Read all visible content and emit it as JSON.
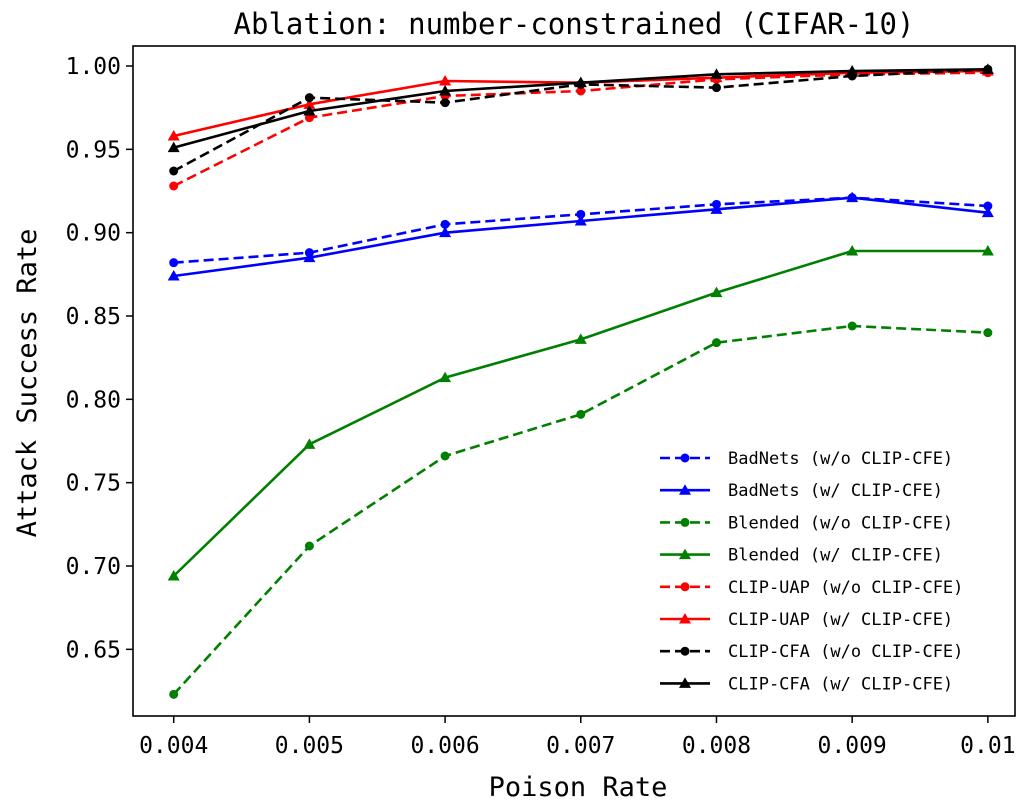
{
  "chart_data": {
    "type": "line",
    "title": "Ablation: number-constrained (CIFAR-10)",
    "xlabel": "Poison Rate",
    "ylabel": "Attack Success Rate",
    "x": [
      0.004,
      0.005,
      0.006,
      0.007,
      0.008,
      0.009,
      0.01
    ],
    "x_tick_labels": [
      "0.004",
      "0.005",
      "0.006",
      "0.007",
      "0.008",
      "0.009",
      "0.01"
    ],
    "y_ticks": [
      0.65,
      0.7,
      0.75,
      0.8,
      0.85,
      0.9,
      0.95,
      1.0
    ],
    "y_tick_labels": [
      "0.65",
      "0.70",
      "0.75",
      "0.80",
      "0.85",
      "0.90",
      "0.95",
      "1.00"
    ],
    "xlim": [
      0.0037,
      0.0102
    ],
    "ylim": [
      0.61,
      1.012
    ],
    "grid": false,
    "legend_position": "lower-right",
    "series": [
      {
        "name": "BadNets (w/o CLIP-CFE)",
        "color": "#0000ff",
        "dash": "dashed",
        "marker": "circle",
        "values": [
          0.882,
          0.888,
          0.905,
          0.911,
          0.917,
          0.921,
          0.916
        ]
      },
      {
        "name": "BadNets (w/ CLIP-CFE)",
        "color": "#0000ff",
        "dash": "solid",
        "marker": "triangle",
        "values": [
          0.874,
          0.885,
          0.9,
          0.907,
          0.914,
          0.921,
          0.912
        ]
      },
      {
        "name": "Blended (w/o CLIP-CFE)",
        "color": "#008000",
        "dash": "dashed",
        "marker": "circle",
        "values": [
          0.623,
          0.712,
          0.766,
          0.791,
          0.834,
          0.844,
          0.84
        ]
      },
      {
        "name": "Blended (w/ CLIP-CFE)",
        "color": "#008000",
        "dash": "solid",
        "marker": "triangle",
        "values": [
          0.694,
          0.773,
          0.813,
          0.836,
          0.864,
          0.889,
          0.889
        ]
      },
      {
        "name": "CLIP-UAP (w/o CLIP-CFE)",
        "color": "#ff0000",
        "dash": "dashed",
        "marker": "circle",
        "values": [
          0.928,
          0.969,
          0.982,
          0.985,
          0.992,
          0.995,
          0.996
        ]
      },
      {
        "name": "CLIP-UAP (w/ CLIP-CFE)",
        "color": "#ff0000",
        "dash": "solid",
        "marker": "triangle",
        "values": [
          0.958,
          0.977,
          0.991,
          0.99,
          0.993,
          0.996,
          0.997
        ]
      },
      {
        "name": "CLIP-CFA (w/o CLIP-CFE)",
        "color": "#000000",
        "dash": "dashed",
        "marker": "circle",
        "values": [
          0.937,
          0.981,
          0.978,
          0.989,
          0.987,
          0.994,
          0.998
        ]
      },
      {
        "name": "CLIP-CFA (w/ CLIP-CFE)",
        "color": "#000000",
        "dash": "solid",
        "marker": "triangle",
        "values": [
          0.951,
          0.973,
          0.985,
          0.99,
          0.995,
          0.997,
          0.998
        ]
      }
    ]
  }
}
